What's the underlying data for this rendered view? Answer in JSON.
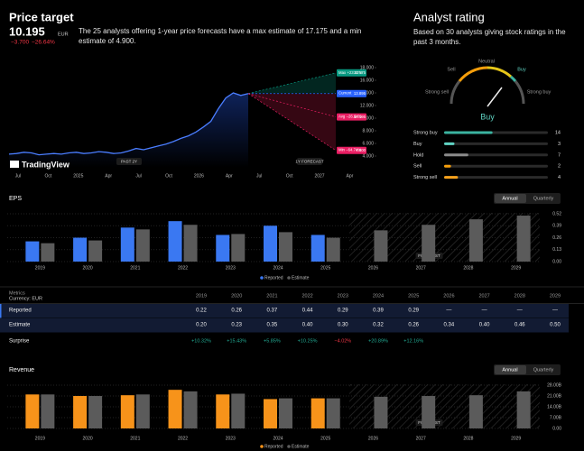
{
  "price_target": {
    "title": "Price target",
    "price": "10.195",
    "currency": "EUR",
    "change": "−3.700",
    "change_pct": "−26.64%",
    "description": "The 25 analysts offering 1-year price forecasts have a max estimate of 17.175 and a min estimate of 4.900.",
    "chart": {
      "type": "line",
      "color": "#4a7dff",
      "values": [
        4.3,
        4.4,
        4.6,
        4.5,
        4.2,
        4.3,
        4.4,
        4.3,
        4.5,
        4.6,
        4.4,
        4.5,
        4.7,
        4.6,
        4.4,
        4.5,
        4.8,
        5.2,
        5.0,
        5.3,
        5.6,
        5.9,
        6.3,
        6.8,
        7.2,
        7.8,
        8.6,
        9.5,
        11.5,
        13.2,
        14.0,
        13.6,
        13.895
      ],
      "xlabels": [
        "Jul",
        "Oct",
        "2025",
        "Apr",
        "Jul",
        "Oct",
        "2026",
        "Apr",
        "Jul",
        "Oct",
        "2027",
        "Apr"
      ],
      "ylim": [
        3,
        19
      ],
      "yticks": [
        {
          "value": 18,
          "label": "18.000"
        },
        {
          "value": 16,
          "label": "16.000"
        },
        {
          "value": 14,
          "label": "14.000"
        },
        {
          "value": 12,
          "label": "12.000"
        },
        {
          "value": 10,
          "label": "10.000"
        },
        {
          "value": 8,
          "label": "8.000"
        },
        {
          "value": 6,
          "label": "6.000"
        },
        {
          "value": 4,
          "label": "4.000"
        }
      ],
      "past_label": "PAST 2Y",
      "forecast_label": "1Y FORECAST",
      "logo": "TradingView",
      "targets": [
        {
          "name": "Max",
          "pct": "+23.62%",
          "value": 17.175,
          "label": "17.175",
          "color": "#089981"
        },
        {
          "name": "Current",
          "value": 13.895,
          "label": "13.895",
          "color": "#2962ff"
        },
        {
          "name": "Avg",
          "pct": "−26.64%",
          "value": 10.195,
          "label": "10.195",
          "color": "#e91e63"
        },
        {
          "name": "Min",
          "pct": "−64.74%",
          "value": 4.9,
          "label": "4.900",
          "color": "#e91e63"
        }
      ]
    }
  },
  "analyst_rating": {
    "title": "Analyst rating",
    "description": "Based on 30 analysts giving stock ratings in the past 3 months.",
    "gauge": {
      "labels": [
        "Strong sell",
        "Sell",
        "Neutral",
        "Buy",
        "Strong buy"
      ],
      "result": "Buy"
    },
    "chart": {
      "type": "bar",
      "categories": [
        "Strong buy",
        "Buy",
        "Hold",
        "Sell",
        "Strong sell"
      ],
      "values": [
        14,
        3,
        7,
        2,
        4
      ],
      "colors": [
        "#3bb3a0",
        "#5fd3c3",
        "#8a8a8a",
        "#f59e0b",
        "#f7a21b"
      ]
    }
  },
  "eps": {
    "title": "EPS",
    "toggle": [
      "Annual",
      "Quarterly"
    ],
    "chart": {
      "type": "bar",
      "categories": [
        "2019",
        "2020",
        "2021",
        "2022",
        "2023",
        "2024",
        "2025",
        "2026",
        "2027",
        "2028",
        "2029"
      ],
      "series": [
        {
          "name": "Reported",
          "color": "#3a78f2",
          "values": [
            0.22,
            0.26,
            0.37,
            0.44,
            0.29,
            0.39,
            0.29,
            null,
            null,
            null,
            null
          ],
          "value_labels": [
            "0.22",
            "0.26",
            "0.37",
            "0.44",
            "0.29",
            "0.39",
            "0.29",
            "—",
            "—",
            "—",
            "—"
          ]
        },
        {
          "name": "Estimate",
          "color": "#5b5b5b",
          "values": [
            0.2,
            0.23,
            0.35,
            0.4,
            0.3,
            0.32,
            0.26,
            0.34,
            0.4,
            0.46,
            0.5
          ],
          "value_labels": [
            "0.20",
            "0.23",
            "0.35",
            "0.40",
            "0.30",
            "0.32",
            "0.26",
            "0.34",
            "0.40",
            "0.46",
            "0.50"
          ]
        }
      ],
      "ylim": [
        0,
        0.53
      ],
      "yticks": [
        0.52,
        0.39,
        0.26,
        0.13,
        {
          "value": 0,
          "label": "0.00"
        }
      ],
      "forecast_label": "FORECAST"
    }
  },
  "metrics_table": {
    "header": "Metrics",
    "currency": "Currency: EUR",
    "rows": [
      "Reported",
      "Estimate",
      "Surprise"
    ],
    "surprise": [
      "+10.32%",
      "+15.43%",
      "+5.85%",
      "+10.25%",
      "−4.02%",
      "+20.89%",
      "+12.16%"
    ]
  },
  "revenue": {
    "title": "Revenue",
    "toggle": [
      "Annual",
      "Quarterly"
    ],
    "chart": {
      "type": "bar",
      "categories": [
        "2019",
        "2020",
        "2021",
        "2022",
        "2023",
        "2024",
        "2025",
        "2026",
        "2027",
        "2028",
        "2029"
      ],
      "series": [
        {
          "name": "Reported",
          "color": "#f7931a",
          "values": [
            22000000000,
            21000000000,
            21500000000,
            25000000000,
            22000000000,
            19000000000,
            19500000000,
            null,
            null,
            null,
            null
          ]
        },
        {
          "name": "Estimate",
          "color": "#5b5b5b",
          "values": [
            22000000000,
            21000000000,
            22000000000,
            24000000000,
            22500000000,
            19500000000,
            19500000000,
            20500000000,
            21000000000,
            21500000000,
            24000000000
          ]
        }
      ],
      "ylim": [
        0,
        28600000000
      ],
      "yticks": [
        {
          "value": 28000000000,
          "label": "28.00B"
        },
        {
          "value": 21000000000,
          "label": "21.00B"
        },
        {
          "value": 14000000000,
          "label": "14.00B"
        },
        {
          "value": 7000000000,
          "label": "7.00B"
        },
        {
          "value": 0,
          "label": "0.00"
        }
      ],
      "forecast_label": "FORECAST"
    }
  }
}
